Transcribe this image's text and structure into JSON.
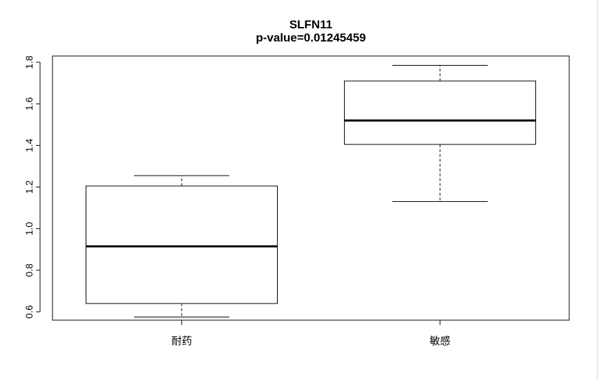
{
  "chart_data": {
    "type": "box",
    "title": "SLFN11",
    "subtitle": "p-value=0.01245459",
    "xlabel": "",
    "ylabel": "",
    "categories": [
      "耐药",
      "敏感"
    ],
    "boxes": [
      {
        "category": "耐药",
        "whisker_low": 0.575,
        "q1": 0.64,
        "median": 0.915,
        "q3": 1.205,
        "whisker_high": 1.255
      },
      {
        "category": "敏感",
        "whisker_low": 1.13,
        "q1": 1.405,
        "median": 1.52,
        "q3": 1.71,
        "whisker_high": 1.785
      }
    ],
    "ylim": [
      0.56,
      1.83
    ],
    "yticks": [
      0.6,
      0.8,
      1.0,
      1.2,
      1.4,
      1.6,
      1.8
    ],
    "ytick_labels": [
      "0.6",
      "0.8",
      "1.0",
      "1.2",
      "1.4",
      "1.6",
      "1.8"
    ],
    "grid": false,
    "legend": "none"
  }
}
